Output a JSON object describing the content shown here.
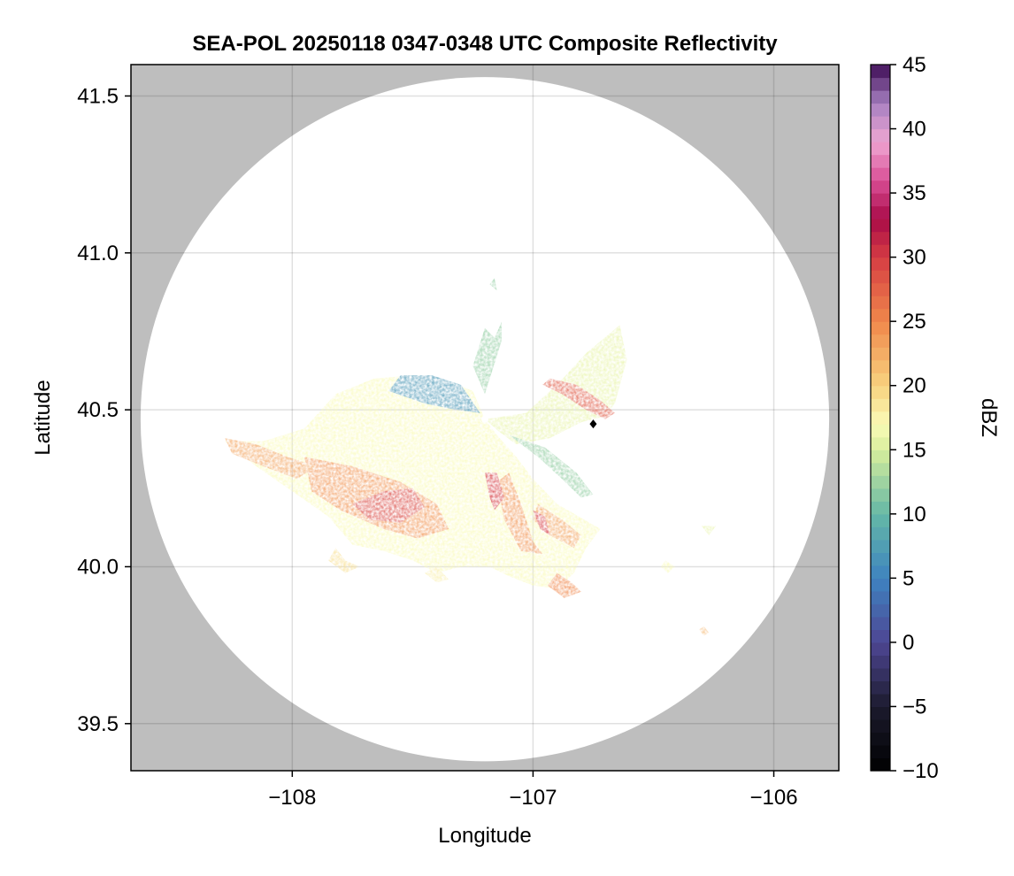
{
  "chart_data": {
    "type": "heatmap",
    "title": "SEA-POL 20250118 0347-0348 UTC Composite Reflectivity",
    "xlabel": "Longitude",
    "ylabel": "Latitude",
    "xlim": [
      -108.67,
      -105.73
    ],
    "ylim": [
      39.35,
      41.6
    ],
    "xticks": [
      -108,
      -107,
      -106
    ],
    "xtick_labels": [
      "−108",
      "−107",
      "−106"
    ],
    "yticks": [
      39.5,
      40.0,
      40.5,
      41.0,
      41.5
    ],
    "ytick_labels": [
      "39.5",
      "40.0",
      "40.5",
      "41.0",
      "41.5"
    ],
    "grid": true,
    "background_color": "#bebebe",
    "radar_coverage": {
      "center_lon": -107.2,
      "center_lat": 40.47,
      "radius_lon": 1.43,
      "radius_lat": 1.09
    },
    "radar_site": {
      "lon": -107.2,
      "lat": 40.47
    },
    "marker": {
      "lon": -106.75,
      "lat": 40.455
    },
    "colorbar": {
      "label": "dBZ",
      "min": -10,
      "max": 45,
      "step": 1,
      "ticks": [
        -10,
        -5,
        0,
        5,
        10,
        15,
        20,
        25,
        30,
        35,
        40,
        45
      ],
      "tick_labels": [
        "−10",
        "−5",
        "0",
        "5",
        "10",
        "15",
        "20",
        "25",
        "30",
        "35",
        "40",
        "45"
      ],
      "colormap": "spectral-extended",
      "stops": [
        {
          "value": -10,
          "color": "#000000"
        },
        {
          "value": -5,
          "color": "#1c1b2e"
        },
        {
          "value": 0,
          "color": "#4e4693"
        },
        {
          "value": 5,
          "color": "#3e83c0"
        },
        {
          "value": 10,
          "color": "#64b8a6"
        },
        {
          "value": 15,
          "color": "#d8ee9c"
        },
        {
          "value": 17,
          "color": "#fafbb7"
        },
        {
          "value": 20,
          "color": "#f8d27f"
        },
        {
          "value": 25,
          "color": "#f0874b"
        },
        {
          "value": 30,
          "color": "#d53c43"
        },
        {
          "value": 33,
          "color": "#a90b48"
        },
        {
          "value": 36,
          "color": "#d94e96"
        },
        {
          "value": 39,
          "color": "#efa6d2"
        },
        {
          "value": 42,
          "color": "#a780c1"
        },
        {
          "value": 45,
          "color": "#3d0b55"
        }
      ]
    },
    "echo_regions": [
      {
        "name": "main-west-sector",
        "polygon": [
          [
            -107.2,
            40.47
          ],
          [
            -107.25,
            40.56
          ],
          [
            -107.35,
            40.59
          ],
          [
            -107.5,
            40.61
          ],
          [
            -107.66,
            40.6
          ],
          [
            -107.82,
            40.55
          ],
          [
            -107.95,
            40.44
          ],
          [
            -108.12,
            40.4
          ],
          [
            -108.28,
            40.4
          ],
          [
            -108.15,
            40.32
          ],
          [
            -108.0,
            40.24
          ],
          [
            -107.85,
            40.16
          ],
          [
            -107.75,
            40.07
          ],
          [
            -107.62,
            40.05
          ],
          [
            -107.5,
            40.02
          ],
          [
            -107.4,
            39.98
          ],
          [
            -107.3,
            40.0
          ],
          [
            -107.18,
            40.0
          ],
          [
            -107.1,
            39.97
          ],
          [
            -107.0,
            39.94
          ],
          [
            -106.9,
            39.93
          ],
          [
            -106.83,
            39.98
          ],
          [
            -106.78,
            40.06
          ],
          [
            -106.72,
            40.12
          ],
          [
            -106.9,
            40.2
          ],
          [
            -107.0,
            40.28
          ],
          [
            -107.07,
            40.35
          ],
          [
            -107.15,
            40.42
          ]
        ],
        "value": 17
      },
      {
        "name": "blue-core-north",
        "polygon": [
          [
            -107.22,
            40.49
          ],
          [
            -107.3,
            40.58
          ],
          [
            -107.42,
            40.61
          ],
          [
            -107.55,
            40.61
          ],
          [
            -107.6,
            40.56
          ],
          [
            -107.45,
            40.52
          ],
          [
            -107.32,
            40.5
          ]
        ],
        "value": 7
      },
      {
        "name": "north-patch",
        "polygon": [
          [
            -107.2,
            40.55
          ],
          [
            -107.25,
            40.64
          ],
          [
            -107.2,
            40.76
          ],
          [
            -107.16,
            40.73
          ],
          [
            -107.13,
            40.78
          ],
          [
            -107.13,
            40.72
          ]
        ],
        "value": 12
      },
      {
        "name": "northeast-arm",
        "polygon": [
          [
            -107.2,
            40.47
          ],
          [
            -107.03,
            40.49
          ],
          [
            -106.9,
            40.58
          ],
          [
            -106.78,
            40.68
          ],
          [
            -106.64,
            40.77
          ],
          [
            -106.61,
            40.66
          ],
          [
            -106.66,
            40.52
          ],
          [
            -106.7,
            40.48
          ],
          [
            -106.8,
            40.46
          ],
          [
            -106.93,
            40.41
          ],
          [
            -107.07,
            40.39
          ],
          [
            -107.14,
            40.43
          ]
        ],
        "value": 16
      },
      {
        "name": "northeast-band",
        "polygon": [
          [
            -106.93,
            40.6
          ],
          [
            -106.82,
            40.58
          ],
          [
            -106.72,
            40.53
          ],
          [
            -106.66,
            40.49
          ],
          [
            -106.7,
            40.47
          ],
          [
            -106.78,
            40.5
          ],
          [
            -106.88,
            40.55
          ],
          [
            -106.96,
            40.58
          ]
        ],
        "value": 28
      },
      {
        "name": "southwest-core",
        "polygon": [
          [
            -107.95,
            40.35
          ],
          [
            -107.75,
            40.32
          ],
          [
            -107.55,
            40.27
          ],
          [
            -107.4,
            40.2
          ],
          [
            -107.35,
            40.12
          ],
          [
            -107.48,
            40.09
          ],
          [
            -107.62,
            40.12
          ],
          [
            -107.8,
            40.18
          ],
          [
            -107.92,
            40.24
          ]
        ],
        "value": 24
      },
      {
        "name": "southwest-peak",
        "polygon": [
          [
            -107.75,
            40.2
          ],
          [
            -107.62,
            40.24
          ],
          [
            -107.5,
            40.25
          ],
          [
            -107.45,
            40.19
          ],
          [
            -107.55,
            40.14
          ],
          [
            -107.68,
            40.15
          ]
        ],
        "value": 29
      },
      {
        "name": "west-tail",
        "polygon": [
          [
            -108.28,
            40.41
          ],
          [
            -108.15,
            40.39
          ],
          [
            -108.02,
            40.35
          ],
          [
            -107.9,
            40.32
          ],
          [
            -107.98,
            40.28
          ],
          [
            -108.12,
            40.32
          ],
          [
            -108.25,
            40.36
          ]
        ],
        "value": 23
      },
      {
        "name": "south-ray-a",
        "polygon": [
          [
            -107.1,
            40.3
          ],
          [
            -107.05,
            40.2
          ],
          [
            -107.0,
            40.08
          ],
          [
            -106.96,
            40.04
          ],
          [
            -107.05,
            40.05
          ],
          [
            -107.12,
            40.15
          ],
          [
            -107.15,
            40.27
          ]
        ],
        "value": 24
      },
      {
        "name": "south-ray-b",
        "polygon": [
          [
            -106.98,
            40.2
          ],
          [
            -106.88,
            40.15
          ],
          [
            -106.8,
            40.1
          ],
          [
            -106.83,
            40.06
          ],
          [
            -106.93,
            40.1
          ],
          [
            -107.0,
            40.15
          ]
        ],
        "value": 23
      },
      {
        "name": "south-tip",
        "polygon": [
          [
            -106.9,
            39.98
          ],
          [
            -106.84,
            39.95
          ],
          [
            -106.8,
            39.92
          ],
          [
            -106.87,
            39.9
          ],
          [
            -106.94,
            39.94
          ]
        ],
        "value": 25
      },
      {
        "name": "ray-peak-1",
        "polygon": [
          [
            -107.2,
            40.3
          ],
          [
            -107.18,
            40.22
          ],
          [
            -107.16,
            40.18
          ],
          [
            -107.12,
            40.22
          ],
          [
            -107.15,
            40.3
          ]
        ],
        "value": 30
      },
      {
        "name": "ray-peak-2",
        "polygon": [
          [
            -107.0,
            40.18
          ],
          [
            -106.97,
            40.12
          ],
          [
            -106.93,
            40.1
          ],
          [
            -106.95,
            40.16
          ]
        ],
        "value": 30
      },
      {
        "name": "southeast-ray",
        "polygon": [
          [
            -107.1,
            40.42
          ],
          [
            -106.98,
            40.35
          ],
          [
            -106.88,
            40.28
          ],
          [
            -106.8,
            40.22
          ],
          [
            -106.75,
            40.23
          ],
          [
            -106.82,
            40.3
          ],
          [
            -106.95,
            40.38
          ]
        ],
        "value": 12
      },
      {
        "name": "south-isle-1",
        "polygon": [
          [
            -107.82,
            40.06
          ],
          [
            -107.78,
            40.02
          ],
          [
            -107.72,
            40.0
          ],
          [
            -107.78,
            39.98
          ],
          [
            -107.85,
            40.02
          ]
        ],
        "value": 19
      },
      {
        "name": "south-isle-2",
        "polygon": [
          [
            -107.45,
            39.98
          ],
          [
            -107.4,
            39.95
          ],
          [
            -107.35,
            39.96
          ],
          [
            -107.4,
            40.0
          ]
        ],
        "value": 18
      },
      {
        "name": "east-isle",
        "polygon": [
          [
            -106.47,
            40.0
          ],
          [
            -106.44,
            39.98
          ],
          [
            -106.41,
            40.0
          ],
          [
            -106.45,
            40.02
          ]
        ],
        "value": 17
      },
      {
        "name": "southeast-isle",
        "polygon": [
          [
            -106.31,
            39.8
          ],
          [
            -106.29,
            39.78
          ],
          [
            -106.27,
            39.79
          ],
          [
            -106.29,
            39.81
          ]
        ],
        "value": 22
      },
      {
        "name": "small-isle-1",
        "polygon": [
          [
            -106.3,
            40.13
          ],
          [
            -106.27,
            40.1
          ],
          [
            -106.24,
            40.13
          ]
        ],
        "value": 16
      },
      {
        "name": "small-isle-2",
        "polygon": [
          [
            -107.18,
            40.9
          ],
          [
            -107.15,
            40.88
          ],
          [
            -107.16,
            40.92
          ]
        ],
        "value": 12
      }
    ]
  }
}
